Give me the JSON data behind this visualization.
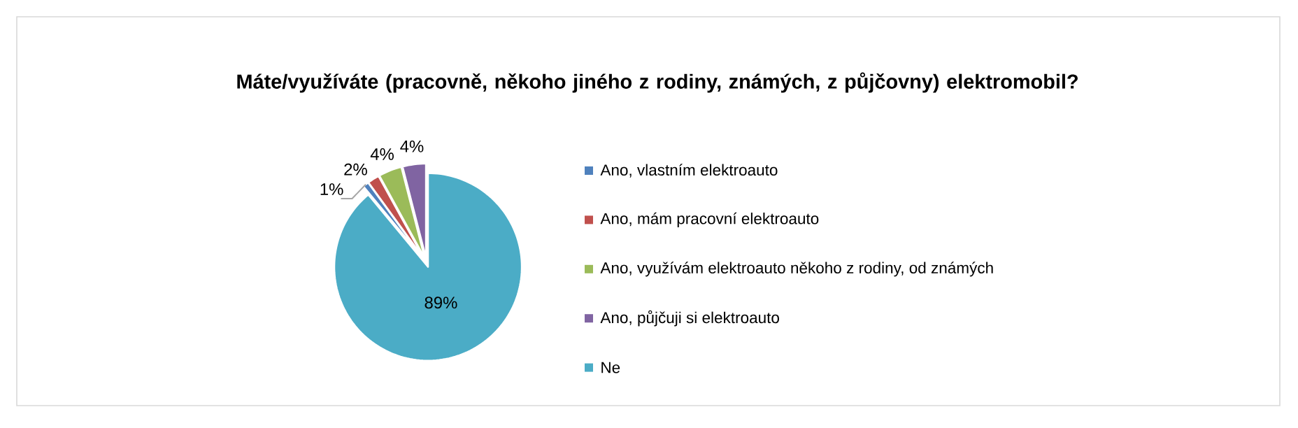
{
  "chart_data": {
    "type": "pie",
    "title": "Máte/využíváte (pracovně, někoho jiného z rodiny, známých, z půjčovny) elektromobil?",
    "categories": [
      "Ano, vlastním elektroauto",
      "Ano, mám pracovní elektroauto",
      "Ano, využívám elektroauto někoho z rodiny, od známých",
      "Ano, půjčuji si elektroauto",
      "Ne"
    ],
    "values": [
      1,
      2,
      4,
      4,
      89
    ],
    "colors": [
      "#4f81bd",
      "#c0504d",
      "#9bbb59",
      "#8064a2",
      "#4bacc6"
    ],
    "value_labels": [
      "1%",
      "2%",
      "4%",
      "4%",
      "89%"
    ],
    "legend": "right"
  }
}
